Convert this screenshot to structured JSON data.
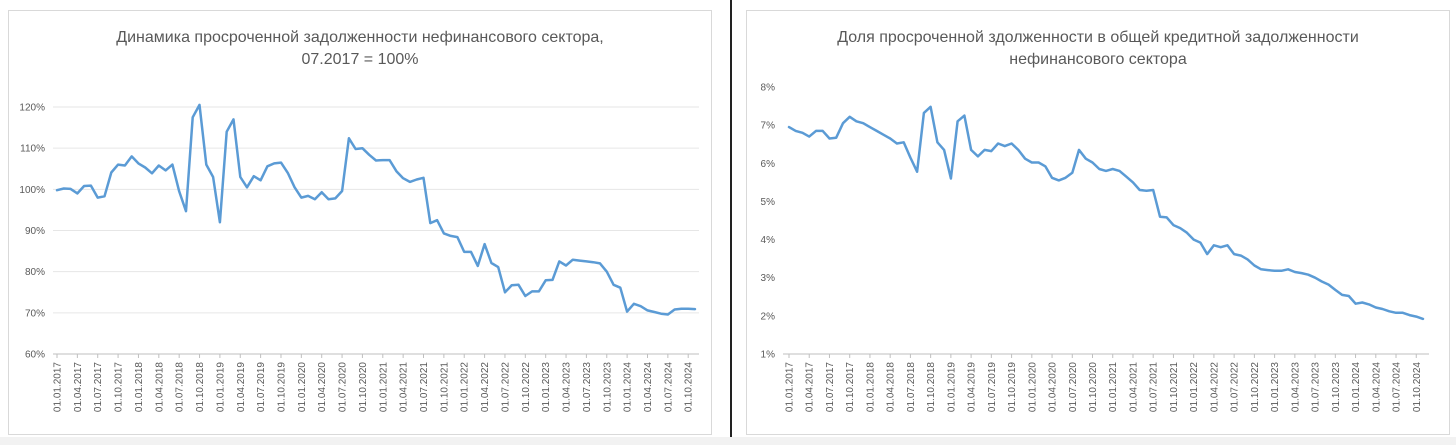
{
  "colors": {
    "series": "#5b9bd5",
    "grid": "#e6e6e6",
    "text": "#595959"
  },
  "chart_data": [
    {
      "type": "line",
      "title_line1": "Динамика просроченной задолженности нефинансового сектора,",
      "title_line2": "07.2017 = 100%",
      "xlabel": "",
      "ylabel": "",
      "ylim": [
        60,
        120
      ],
      "y_ticks": [
        "60%",
        "70%",
        "80%",
        "90%",
        "100%",
        "110%",
        "120%"
      ],
      "y_tick_values": [
        60,
        70,
        80,
        90,
        100,
        110,
        120
      ],
      "x_ticks": [
        "01.01.2017",
        "01.04.2017",
        "01.07.2017",
        "01.10.2017",
        "01.01.2018",
        "01.04.2018",
        "01.07.2018",
        "01.10.2018",
        "01.01.2019",
        "01.04.2019",
        "01.07.2019",
        "01.10.2019",
        "01.01.2020",
        "01.04.2020",
        "01.07.2020",
        "01.10.2020",
        "01.01.2021",
        "01.04.2021",
        "01.07.2021",
        "01.10.2021",
        "01.01.2022",
        "01.04.2022",
        "01.07.2022",
        "01.10.2022",
        "01.01.2023",
        "01.04.2023",
        "01.07.2023",
        "01.10.2023",
        "01.01.2024",
        "01.04.2024",
        "01.07.2024",
        "01.10.2024"
      ],
      "grid": true,
      "legend": "none",
      "values": [
        99.8,
        100.2,
        100.1,
        99.0,
        100.8,
        100.9,
        98.0,
        98.3,
        104.1,
        106.0,
        105.8,
        108.0,
        106.3,
        105.3,
        103.9,
        105.8,
        104.6,
        106.0,
        99.5,
        94.7,
        117.5,
        120.5,
        106.0,
        103.0,
        92.0,
        114.0,
        117.0,
        103.0,
        100.5,
        103.2,
        102.2,
        105.6,
        106.3,
        106.5,
        104.0,
        100.5,
        98.0,
        98.4,
        97.6,
        99.3,
        97.6,
        97.8,
        99.6,
        112.4,
        109.8,
        110.0,
        108.4,
        107.0,
        107.1,
        107.1,
        104.4,
        102.7,
        101.8,
        102.4,
        102.8,
        91.8,
        92.5,
        89.3,
        88.7,
        88.4,
        84.8,
        84.8,
        81.4,
        86.7,
        82.1,
        81.1,
        75.0,
        76.7,
        76.8,
        74.1,
        75.2,
        75.2,
        77.9,
        78.0,
        82.5,
        81.5,
        82.9,
        82.7,
        82.5,
        82.3,
        82.0,
        80.0,
        76.8,
        76.1,
        70.3,
        72.2,
        71.6,
        70.6,
        70.2,
        69.8,
        69.6,
        70.8,
        71.0,
        71.0,
        70.9
      ]
    },
    {
      "type": "line",
      "title_line1": "Доля просроченной здолженности в общей кредитной задолженности",
      "title_line2": "нефинансового сектора",
      "xlabel": "",
      "ylabel": "",
      "ylim": [
        1,
        8
      ],
      "y_ticks": [
        "1%",
        "2%",
        "3%",
        "4%",
        "5%",
        "6%",
        "7%",
        "8%"
      ],
      "y_tick_values": [
        1,
        2,
        3,
        4,
        5,
        6,
        7,
        8
      ],
      "x_ticks": [
        "01.01.2017",
        "01.04.2017",
        "01.07.2017",
        "01.10.2017",
        "01.01.2018",
        "01.04.2018",
        "01.07.2018",
        "01.10.2018",
        "01.01.2019",
        "01.04.2019",
        "01.07.2019",
        "01.10.2019",
        "01.01.2020",
        "01.04.2020",
        "01.07.2020",
        "01.10.2020",
        "01.01.2021",
        "01.04.2021",
        "01.07.2021",
        "01.10.2021",
        "01.01.2022",
        "01.04.2022",
        "01.07.2022",
        "01.10.2022",
        "01.01.2023",
        "01.04.2023",
        "01.07.2023",
        "01.10.2023",
        "01.01.2024",
        "01.04.2024",
        "01.07.2024",
        "01.10.2024"
      ],
      "grid": false,
      "legend": "none",
      "values": [
        6.95,
        6.85,
        6.8,
        6.7,
        6.85,
        6.85,
        6.65,
        6.67,
        7.05,
        7.22,
        7.1,
        7.05,
        6.95,
        6.85,
        6.75,
        6.65,
        6.52,
        6.55,
        6.15,
        5.78,
        7.32,
        7.48,
        6.55,
        6.35,
        5.6,
        7.1,
        7.25,
        6.35,
        6.18,
        6.35,
        6.32,
        6.52,
        6.45,
        6.52,
        6.35,
        6.12,
        6.02,
        6.02,
        5.92,
        5.62,
        5.55,
        5.62,
        5.75,
        6.35,
        6.12,
        6.02,
        5.85,
        5.8,
        5.85,
        5.8,
        5.65,
        5.5,
        5.3,
        5.28,
        5.3,
        4.6,
        4.58,
        4.38,
        4.3,
        4.18,
        4.0,
        3.92,
        3.62,
        3.85,
        3.8,
        3.85,
        3.62,
        3.58,
        3.48,
        3.32,
        3.22,
        3.2,
        3.18,
        3.18,
        3.22,
        3.15,
        3.12,
        3.08,
        3.0,
        2.9,
        2.82,
        2.68,
        2.55,
        2.52,
        2.32,
        2.35,
        2.3,
        2.22,
        2.18,
        2.12,
        2.08,
        2.08,
        2.02,
        1.98,
        1.92
      ]
    }
  ]
}
